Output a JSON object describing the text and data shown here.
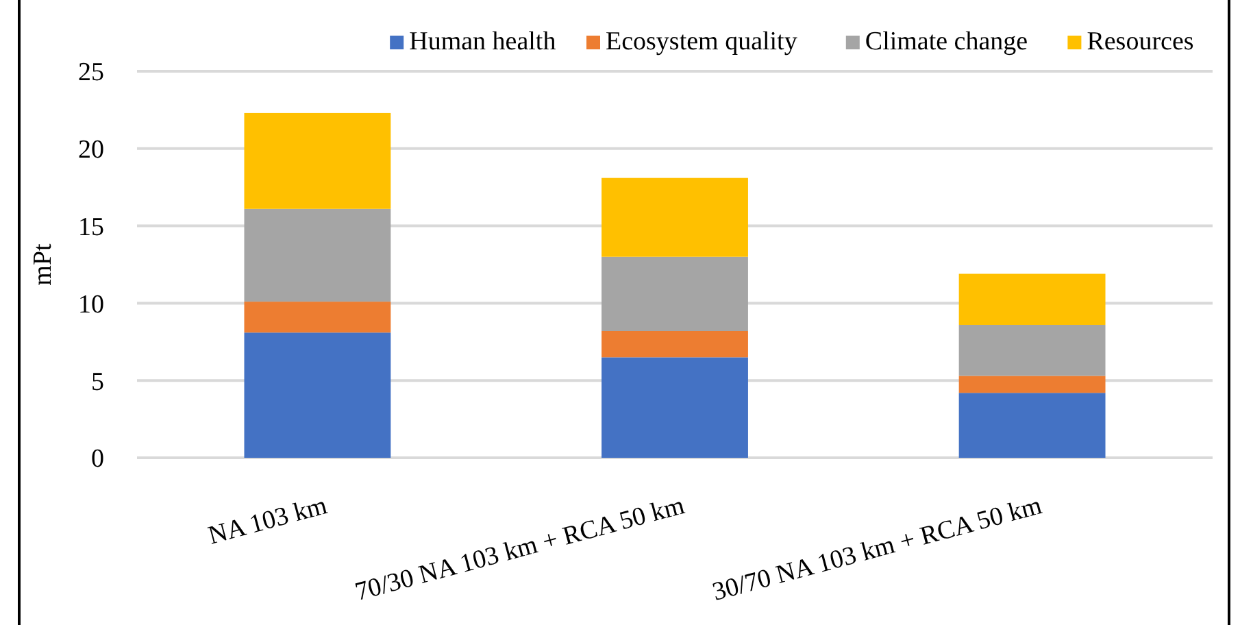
{
  "chart_data": {
    "type": "bar",
    "stacked": true,
    "ylabel": "mPt",
    "categories": [
      "NA 103 km",
      "70/30 NA 103 km + RCA 50 km",
      "30/70 NA 103 km + RCA 50 km"
    ],
    "series": [
      {
        "name": "Human health",
        "color": "#4472c4",
        "values": [
          8.1,
          6.5,
          4.2
        ]
      },
      {
        "name": "Ecosystem quality",
        "color": "#ed7d31",
        "values": [
          2.0,
          1.7,
          1.1
        ]
      },
      {
        "name": "Climate change",
        "color": "#a5a5a5",
        "values": [
          6.0,
          4.8,
          3.3
        ]
      },
      {
        "name": "Resources",
        "color": "#ffc000",
        "values": [
          6.2,
          5.1,
          3.3
        ]
      }
    ],
    "ylim": [
      0,
      25
    ],
    "yticks": [
      0,
      5,
      10,
      15,
      20,
      25
    ],
    "grid": "y",
    "legend": "top"
  }
}
